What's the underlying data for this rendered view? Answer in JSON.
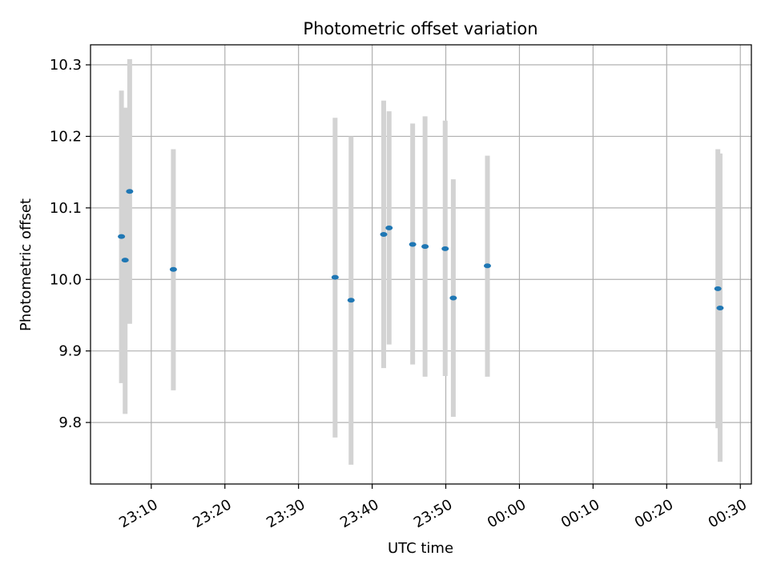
{
  "chart_data": {
    "type": "scatter",
    "title": "Photometric offset variation",
    "xlabel": "UTC time",
    "ylabel": "Photometric offset",
    "xlim": [
      "2023-01-01T23:01:45",
      "2023-01-02T00:31:30"
    ],
    "ylim": [
      9.714,
      10.328
    ],
    "grid": true,
    "x_ticks": [
      {
        "time": "2023-01-01T23:10:00",
        "label": "23:10"
      },
      {
        "time": "2023-01-01T23:20:00",
        "label": "23:20"
      },
      {
        "time": "2023-01-01T23:30:00",
        "label": "23:30"
      },
      {
        "time": "2023-01-01T23:40:00",
        "label": "23:40"
      },
      {
        "time": "2023-01-01T23:50:00",
        "label": "23:50"
      },
      {
        "time": "2023-01-02T00:00:00",
        "label": "00:00"
      },
      {
        "time": "2023-01-02T00:10:00",
        "label": "00:10"
      },
      {
        "time": "2023-01-02T00:20:00",
        "label": "00:20"
      },
      {
        "time": "2023-01-02T00:30:00",
        "label": "00:30"
      }
    ],
    "y_ticks": [
      {
        "value": 9.8,
        "label": "9.8"
      },
      {
        "value": 9.9,
        "label": "9.9"
      },
      {
        "value": 10.0,
        "label": "10.0"
      },
      {
        "value": 10.1,
        "label": "10.1"
      },
      {
        "value": 10.2,
        "label": "10.2"
      },
      {
        "value": 10.3,
        "label": "10.3"
      }
    ],
    "colors": {
      "points": "#1f77b4",
      "errorbars": "#d3d3d3",
      "grid": "#b0b0b0"
    },
    "points": [
      {
        "time": "2023-01-01T23:05:57",
        "y": 10.06,
        "err_low": 9.855,
        "err_high": 10.264
      },
      {
        "time": "2023-01-01T23:06:27",
        "y": 10.027,
        "err_low": 9.812,
        "err_high": 10.24
      },
      {
        "time": "2023-01-01T23:07:04",
        "y": 10.123,
        "err_low": 9.938,
        "err_high": 10.308
      },
      {
        "time": "2023-01-01T23:13:00",
        "y": 10.014,
        "err_low": 9.845,
        "err_high": 10.182
      },
      {
        "time": "2023-01-01T23:34:58",
        "y": 10.003,
        "err_low": 9.779,
        "err_high": 10.226
      },
      {
        "time": "2023-01-01T23:37:08",
        "y": 9.971,
        "err_low": 9.741,
        "err_high": 10.2
      },
      {
        "time": "2023-01-01T23:41:34",
        "y": 10.063,
        "err_low": 9.876,
        "err_high": 10.25
      },
      {
        "time": "2023-01-01T23:42:18",
        "y": 10.072,
        "err_low": 9.909,
        "err_high": 10.235
      },
      {
        "time": "2023-01-01T23:45:30",
        "y": 10.049,
        "err_low": 9.881,
        "err_high": 10.218
      },
      {
        "time": "2023-01-01T23:47:11",
        "y": 10.046,
        "err_low": 9.864,
        "err_high": 10.228
      },
      {
        "time": "2023-01-01T23:49:55",
        "y": 10.043,
        "err_low": 9.865,
        "err_high": 10.222
      },
      {
        "time": "2023-01-01T23:51:01",
        "y": 9.974,
        "err_low": 9.808,
        "err_high": 10.14
      },
      {
        "time": "2023-01-01T23:55:39",
        "y": 10.019,
        "err_low": 9.864,
        "err_high": 10.173
      },
      {
        "time": "2023-01-02T00:26:57",
        "y": 9.987,
        "err_low": 9.792,
        "err_high": 10.182
      },
      {
        "time": "2023-01-02T00:27:15",
        "y": 9.96,
        "err_low": 9.745,
        "err_high": 10.176
      }
    ]
  }
}
